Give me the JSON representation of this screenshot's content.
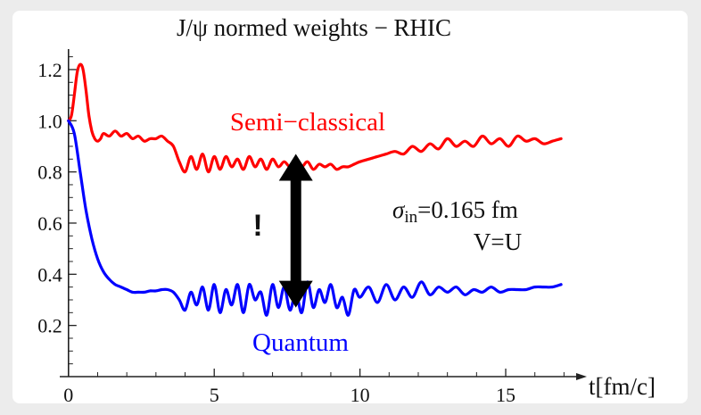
{
  "chart_data": {
    "type": "line",
    "title": "J/ψ normed weights − RHIC",
    "xlabel": "t[fm/c]",
    "ylabel": "",
    "xlim": [
      -0.3,
      17.6
    ],
    "ylim": [
      0.0,
      1.28
    ],
    "x_ticks": [
      0,
      5,
      10,
      15
    ],
    "y_ticks": [
      0.2,
      0.4,
      0.6,
      0.8,
      1.0,
      1.2
    ],
    "x_tick_labels": [
      "0",
      "5",
      "10",
      "15"
    ],
    "y_tick_labels": [
      "0.2",
      "0.4",
      "0.6",
      "0.8",
      "1.0",
      "1.2"
    ],
    "series": [
      {
        "name": "Semi−classical",
        "color": "#ff0000",
        "x": [
          0,
          0.1,
          0.2,
          0.3,
          0.4,
          0.5,
          0.6,
          0.7,
          0.8,
          0.9,
          1.0,
          1.1,
          1.2,
          1.4,
          1.6,
          1.8,
          2.0,
          2.2,
          2.4,
          2.6,
          2.8,
          3.0,
          3.2,
          3.4,
          3.6,
          3.8,
          4.0,
          4.2,
          4.4,
          4.6,
          4.8,
          5.0,
          5.2,
          5.4,
          5.6,
          5.8,
          6.0,
          6.2,
          6.4,
          6.6,
          6.8,
          7.0,
          7.2,
          7.4,
          7.6,
          7.8,
          8.0,
          8.2,
          8.4,
          8.6,
          8.8,
          9.0,
          9.2,
          9.4,
          9.6,
          9.8,
          10.0,
          10.3,
          10.6,
          10.9,
          11.2,
          11.5,
          11.8,
          12.1,
          12.4,
          12.7,
          13.0,
          13.3,
          13.6,
          13.9,
          14.2,
          14.5,
          14.8,
          15.1,
          15.4,
          15.7,
          16.0,
          16.3,
          16.6,
          16.9
        ],
        "values": [
          1.0,
          1.02,
          1.1,
          1.19,
          1.22,
          1.2,
          1.12,
          1.02,
          0.96,
          0.93,
          0.92,
          0.93,
          0.95,
          0.94,
          0.96,
          0.94,
          0.95,
          0.93,
          0.94,
          0.92,
          0.93,
          0.93,
          0.94,
          0.92,
          0.9,
          0.84,
          0.8,
          0.86,
          0.81,
          0.87,
          0.8,
          0.86,
          0.81,
          0.86,
          0.82,
          0.85,
          0.81,
          0.86,
          0.82,
          0.85,
          0.81,
          0.85,
          0.82,
          0.84,
          0.82,
          0.84,
          0.82,
          0.84,
          0.81,
          0.83,
          0.82,
          0.83,
          0.81,
          0.82,
          0.82,
          0.83,
          0.84,
          0.85,
          0.86,
          0.87,
          0.88,
          0.87,
          0.9,
          0.88,
          0.91,
          0.89,
          0.93,
          0.9,
          0.92,
          0.9,
          0.94,
          0.91,
          0.93,
          0.9,
          0.94,
          0.92,
          0.93,
          0.91,
          0.92,
          0.93
        ]
      },
      {
        "name": "Quantum",
        "color": "#0000ff",
        "x": [
          0,
          0.2,
          0.4,
          0.6,
          0.8,
          1.0,
          1.2,
          1.4,
          1.6,
          1.8,
          2.0,
          2.2,
          2.4,
          2.6,
          2.8,
          3.0,
          3.2,
          3.4,
          3.6,
          3.8,
          4.0,
          4.2,
          4.4,
          4.6,
          4.8,
          5.0,
          5.2,
          5.4,
          5.6,
          5.8,
          6.0,
          6.2,
          6.4,
          6.6,
          6.8,
          7.0,
          7.2,
          7.4,
          7.6,
          7.8,
          8.0,
          8.2,
          8.4,
          8.6,
          8.8,
          9.0,
          9.2,
          9.4,
          9.6,
          9.8,
          10.0,
          10.3,
          10.6,
          10.9,
          11.2,
          11.5,
          11.8,
          12.1,
          12.4,
          12.7,
          13.0,
          13.3,
          13.6,
          13.9,
          14.2,
          14.5,
          14.8,
          15.1,
          15.4,
          15.7,
          16.0,
          16.3,
          16.6,
          16.9
        ],
        "values": [
          1.0,
          0.95,
          0.8,
          0.65,
          0.54,
          0.46,
          0.41,
          0.38,
          0.36,
          0.35,
          0.34,
          0.33,
          0.33,
          0.33,
          0.335,
          0.335,
          0.34,
          0.34,
          0.33,
          0.3,
          0.26,
          0.33,
          0.28,
          0.35,
          0.26,
          0.36,
          0.25,
          0.34,
          0.28,
          0.36,
          0.25,
          0.36,
          0.3,
          0.33,
          0.24,
          0.36,
          0.27,
          0.35,
          0.26,
          0.33,
          0.25,
          0.37,
          0.27,
          0.34,
          0.29,
          0.36,
          0.27,
          0.31,
          0.24,
          0.34,
          0.31,
          0.35,
          0.29,
          0.36,
          0.3,
          0.35,
          0.31,
          0.37,
          0.32,
          0.35,
          0.33,
          0.35,
          0.32,
          0.34,
          0.33,
          0.35,
          0.33,
          0.34,
          0.34,
          0.34,
          0.35,
          0.35,
          0.35,
          0.36
        ]
      }
    ],
    "annotations": {
      "sigma_symbol": "σ",
      "sigma_subscript": "in",
      "sigma_value": "=0.165 fm",
      "v_eq_u": "V=U",
      "exclamation": "!"
    },
    "arrow": {
      "x": 7.8,
      "y_top": 0.87,
      "y_bottom": 0.27,
      "color": "#000000"
    },
    "grid": false,
    "legend": "none"
  }
}
